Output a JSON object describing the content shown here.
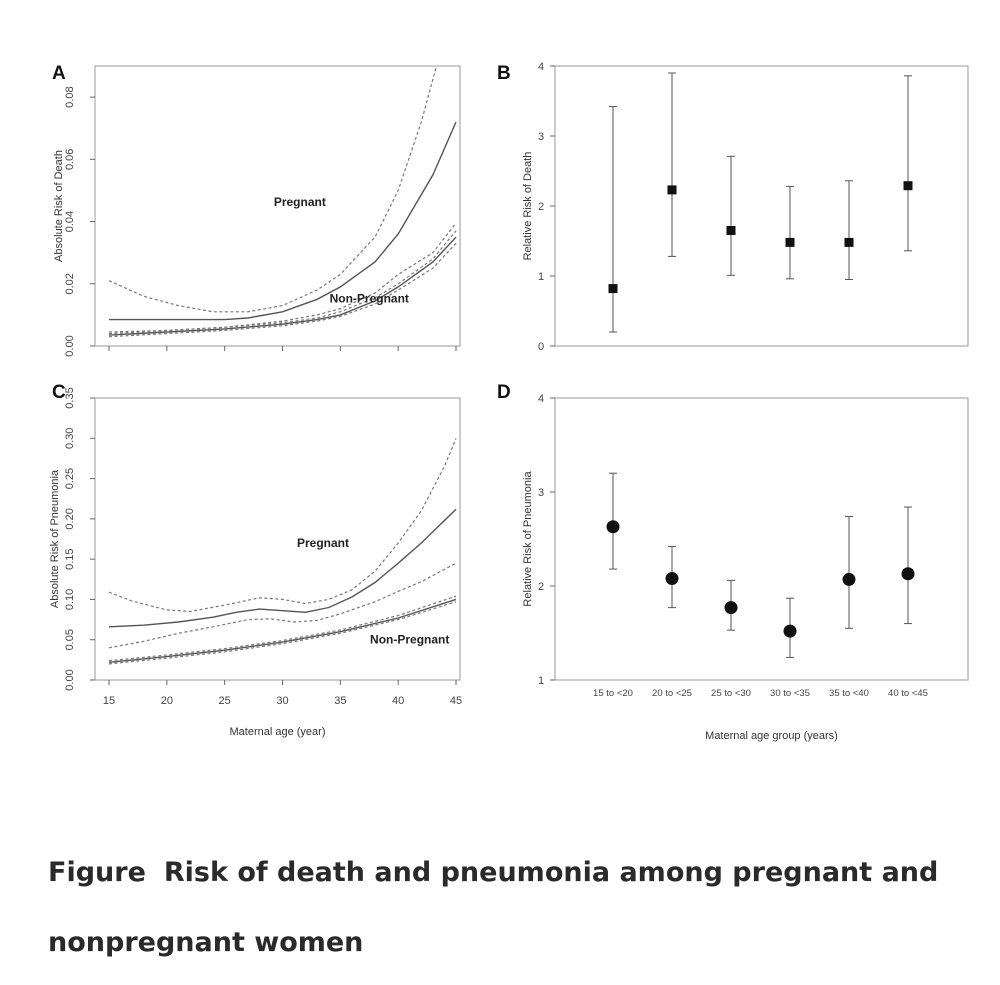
{
  "caption": {
    "lead": "Figure",
    "text": "Risk of death and pneumonia among pregnant and nonpregnant women"
  },
  "chart_data": [
    {
      "panel": "A",
      "type": "line",
      "ylabel": "Absolute Risk of Death",
      "xlim": [
        15,
        45
      ],
      "ylim": [
        0,
        0.09
      ],
      "yticks": [
        "0.00",
        "0.02",
        "0.04",
        "0.06",
        "0.08"
      ],
      "series": [
        {
          "name": "Pregnant",
          "style": "solid",
          "x": [
            15,
            20,
            25,
            27,
            30,
            33,
            35,
            38,
            40,
            43,
            45
          ],
          "y": [
            0.0085,
            0.0085,
            0.0085,
            0.009,
            0.011,
            0.015,
            0.019,
            0.027,
            0.036,
            0.055,
            0.072
          ]
        },
        {
          "style": "dashed",
          "x": [
            15,
            18,
            21,
            24,
            27,
            30,
            33,
            35,
            38,
            40,
            42,
            43.5
          ],
          "y": [
            0.021,
            0.016,
            0.013,
            0.011,
            0.011,
            0.013,
            0.018,
            0.023,
            0.035,
            0.05,
            0.072,
            0.0925
          ]
        },
        {
          "style": "dashed",
          "x": [
            15,
            20,
            25,
            30,
            33,
            35,
            38,
            40,
            43,
            45
          ],
          "y": [
            0.0045,
            0.005,
            0.006,
            0.008,
            0.01,
            0.012,
            0.017,
            0.023,
            0.03,
            0.0395
          ]
        },
        {
          "name": "Non-Pregnant",
          "style": "solid",
          "x": [
            15,
            20,
            25,
            30,
            33,
            35,
            38,
            40,
            43,
            45
          ],
          "y": [
            0.0035,
            0.0045,
            0.0055,
            0.007,
            0.0085,
            0.01,
            0.0145,
            0.019,
            0.027,
            0.035
          ]
        },
        {
          "style": "dashed",
          "x": [
            15,
            20,
            25,
            30,
            33,
            35,
            38,
            40,
            43,
            45
          ],
          "y": [
            0.003,
            0.004,
            0.005,
            0.0065,
            0.008,
            0.0095,
            0.0135,
            0.018,
            0.025,
            0.033
          ]
        },
        {
          "style": "dashed",
          "x": [
            15,
            20,
            25,
            30,
            33,
            35,
            38,
            40,
            43,
            45
          ],
          "y": [
            0.004,
            0.005,
            0.006,
            0.0075,
            0.009,
            0.011,
            0.0155,
            0.02,
            0.028,
            0.037
          ]
        }
      ],
      "labels": [
        {
          "text": "Pregnant",
          "x": 31.5,
          "y": 0.045
        },
        {
          "text": "Non-Pregnant",
          "x": 37.5,
          "y": 0.014
        }
      ]
    },
    {
      "panel": "B",
      "type": "scatter",
      "ylabel": "Relative Risk of Death",
      "ylim": [
        0,
        4
      ],
      "yticks": [
        "0",
        "1",
        "2",
        "3",
        "4"
      ],
      "categories": [
        "15 to <20",
        "20 to <25",
        "25 to <30",
        "30 to <35",
        "35 to <40",
        "40 to <45"
      ],
      "values": [
        0.82,
        2.23,
        1.65,
        1.48,
        1.48,
        2.29
      ],
      "lower": [
        0.2,
        1.28,
        1.01,
        0.96,
        0.95,
        1.36
      ],
      "upper": [
        3.42,
        3.9,
        2.71,
        2.28,
        2.36,
        3.86
      ],
      "marker": "square"
    },
    {
      "panel": "C",
      "type": "line",
      "ylabel": "Absolute Risk of Pneumonia",
      "xlabel": "Maternal age (year)",
      "xlim": [
        15,
        45
      ],
      "ylim": [
        0,
        0.35
      ],
      "xticks": [
        "15",
        "20",
        "25",
        "30",
        "35",
        "40",
        "45"
      ],
      "yticks": [
        "0.00",
        "0.05",
        "0.10",
        "0.15",
        "0.20",
        "0.25",
        "0.30",
        "0.35"
      ],
      "series": [
        {
          "name": "Pregnant",
          "style": "solid",
          "x": [
            15,
            18,
            21,
            24,
            26,
            28,
            30,
            32,
            34,
            36,
            38,
            40,
            42,
            45
          ],
          "y": [
            0.066,
            0.068,
            0.072,
            0.078,
            0.084,
            0.088,
            0.086,
            0.084,
            0.09,
            0.103,
            0.121,
            0.145,
            0.17,
            0.212
          ]
        },
        {
          "style": "dashed",
          "x": [
            15,
            17,
            20,
            22,
            25,
            28,
            30,
            32,
            34,
            36,
            38,
            40,
            42,
            44,
            45
          ],
          "y": [
            0.109,
            0.098,
            0.087,
            0.085,
            0.093,
            0.102,
            0.1,
            0.095,
            0.1,
            0.112,
            0.135,
            0.17,
            0.21,
            0.265,
            0.3
          ]
        },
        {
          "style": "dashed",
          "x": [
            15,
            18,
            21,
            24,
            27,
            29,
            31,
            33,
            35,
            38,
            40,
            42,
            45
          ],
          "y": [
            0.04,
            0.048,
            0.058,
            0.066,
            0.075,
            0.076,
            0.072,
            0.074,
            0.082,
            0.097,
            0.11,
            0.122,
            0.145
          ]
        },
        {
          "name": "Non-Pregnant",
          "style": "solid",
          "x": [
            15,
            20,
            25,
            30,
            35,
            40,
            45
          ],
          "y": [
            0.022,
            0.029,
            0.037,
            0.047,
            0.06,
            0.077,
            0.1
          ]
        },
        {
          "style": "dashed",
          "x": [
            15,
            20,
            25,
            30,
            35,
            40,
            45
          ],
          "y": [
            0.02,
            0.027,
            0.035,
            0.045,
            0.058,
            0.075,
            0.097
          ]
        },
        {
          "style": "dashed",
          "x": [
            15,
            20,
            25,
            30,
            35,
            40,
            45
          ],
          "y": [
            0.024,
            0.031,
            0.039,
            0.049,
            0.062,
            0.08,
            0.104
          ]
        }
      ],
      "labels": [
        {
          "text": "Pregnant",
          "x": 33.5,
          "y": 0.165
        },
        {
          "text": "Non-Pregnant",
          "x": 41,
          "y": 0.045
        }
      ]
    },
    {
      "panel": "D",
      "type": "scatter",
      "ylabel": "Relative Risk of Pneumonia",
      "xlabel": "Maternal age group (years)",
      "ylim": [
        1,
        4
      ],
      "yticks": [
        "1",
        "2",
        "3",
        "4"
      ],
      "categories": [
        "15 to <20",
        "20 to <25",
        "25 to <30",
        "30 to <35",
        "35 to <40",
        "40 to <45"
      ],
      "values": [
        2.63,
        2.08,
        1.77,
        1.52,
        2.07,
        2.13
      ],
      "lower": [
        2.18,
        1.77,
        1.53,
        1.24,
        1.55,
        1.6
      ],
      "upper": [
        3.2,
        2.42,
        2.06,
        1.87,
        2.74,
        2.84
      ],
      "marker": "circle"
    }
  ]
}
